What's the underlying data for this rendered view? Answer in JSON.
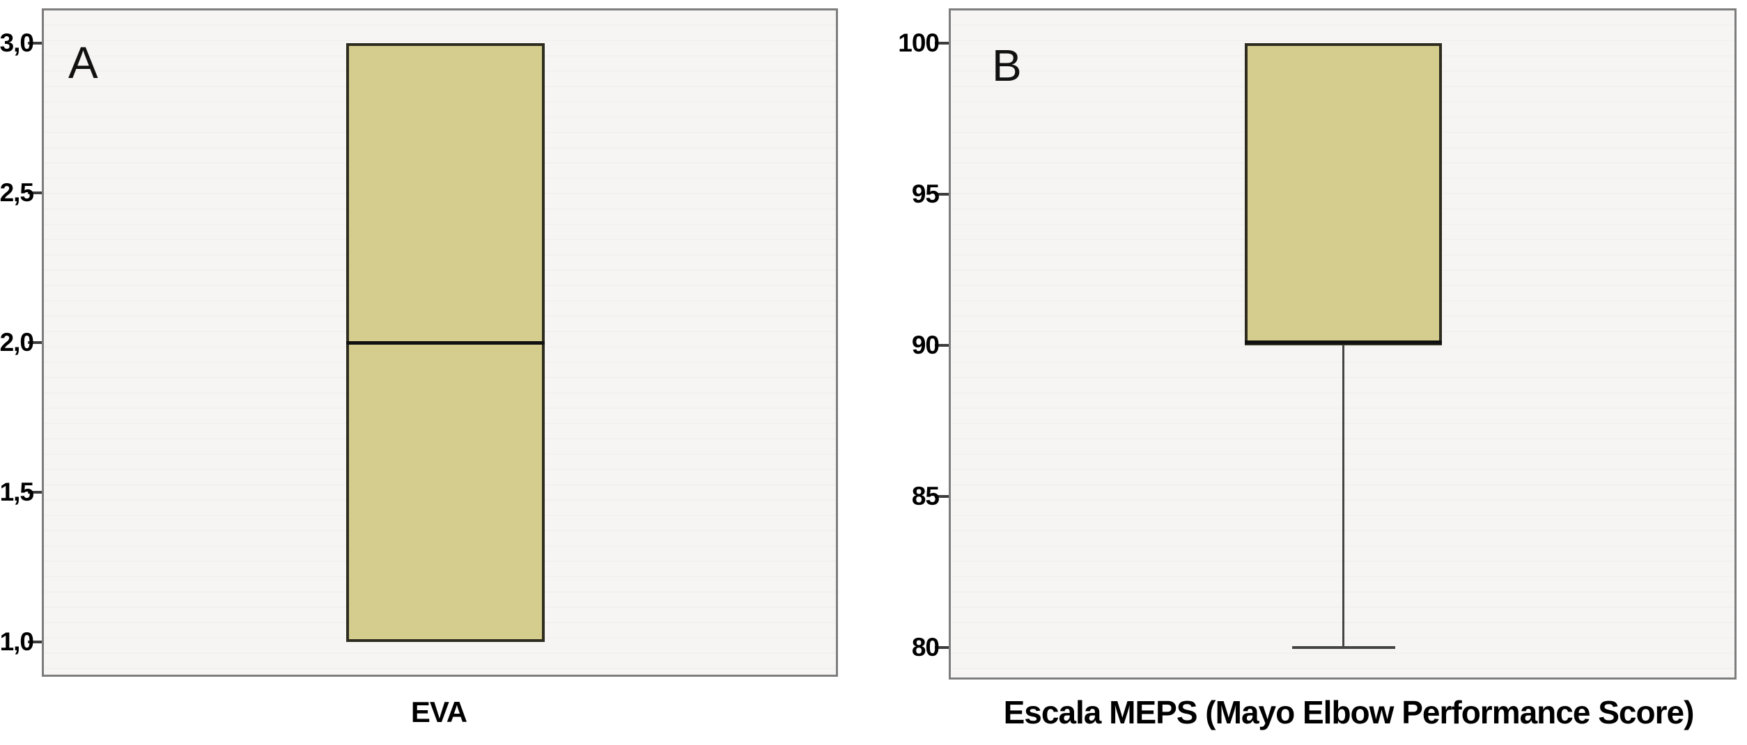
{
  "figure": {
    "description": "Two-panel boxplot figure",
    "colors": {
      "box_fill": "#d5cd8e",
      "box_border": "#2e2c1f",
      "median": "#101010",
      "whisker": "#444444",
      "frame_border": "#7d7d7d",
      "panel_bg": "#f5f4f2",
      "text": "#000000",
      "background": "#ffffff"
    }
  },
  "chart_data": [
    {
      "type": "box",
      "panel_label": "A",
      "title": "",
      "xlabel": "EVA",
      "ylabel": "",
      "ylim": [
        0.884,
        3.116
      ],
      "grid": false,
      "legend": null,
      "yticks": [
        {
          "value": 3.0,
          "label": "3,0"
        },
        {
          "value": 2.5,
          "label": "2,5"
        },
        {
          "value": 2.0,
          "label": "2,0"
        },
        {
          "value": 1.5,
          "label": "1,5"
        },
        {
          "value": 1.0,
          "label": "1,0"
        }
      ],
      "box": {
        "q1": 1.0,
        "median": 2.0,
        "q3": 3.0,
        "whisker_low": 1.0,
        "whisker_high": 3.0
      }
    },
    {
      "type": "box",
      "panel_label": "B",
      "title": "",
      "xlabel": "Escala MEPS (Mayo Elbow Performance Score)",
      "ylabel": "",
      "ylim": [
        78.93,
        101.16
      ],
      "grid": false,
      "legend": null,
      "yticks": [
        {
          "value": 100,
          "label": "100"
        },
        {
          "value": 95,
          "label": "95"
        },
        {
          "value": 90,
          "label": "90"
        },
        {
          "value": 85,
          "label": "85"
        },
        {
          "value": 80,
          "label": "80"
        }
      ],
      "box": {
        "q1": 90,
        "median": 90,
        "q3": 100,
        "whisker_low": 80,
        "whisker_high": 100
      }
    }
  ]
}
